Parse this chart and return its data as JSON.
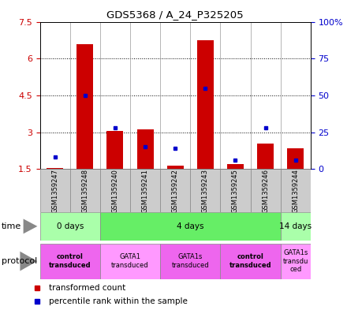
{
  "title": "GDS5368 / A_24_P325205",
  "samples": [
    "GSM1359247",
    "GSM1359248",
    "GSM1359240",
    "GSM1359241",
    "GSM1359242",
    "GSM1359243",
    "GSM1359245",
    "GSM1359246",
    "GSM1359244"
  ],
  "red_values": [
    1.55,
    6.6,
    3.05,
    3.1,
    1.65,
    6.75,
    1.7,
    2.55,
    2.35
  ],
  "blue_values_pct": [
    8,
    50,
    28,
    15,
    14,
    55,
    6,
    28,
    6
  ],
  "ylim_left": [
    1.5,
    7.5
  ],
  "yticks_left": [
    1.5,
    3.0,
    4.5,
    6.0,
    7.5
  ],
  "yticks_left_labels": [
    "1.5",
    "3",
    "4.5",
    "6",
    "7.5"
  ],
  "yticks_right": [
    0,
    25,
    50,
    75,
    100
  ],
  "yticks_right_labels": [
    "0",
    "25",
    "50",
    "75",
    "100%"
  ],
  "red_color": "#cc0000",
  "blue_color": "#0000cc",
  "bar_width": 0.55,
  "time_groups": [
    {
      "label": "0 days",
      "start": 0,
      "end": 2,
      "color": "#aaffaa"
    },
    {
      "label": "4 days",
      "start": 2,
      "end": 8,
      "color": "#66ee66"
    },
    {
      "label": "14 days",
      "start": 8,
      "end": 9,
      "color": "#aaffaa"
    }
  ],
  "protocol_groups": [
    {
      "label": "control\ntransduced",
      "start": 0,
      "end": 2,
      "color": "#ee66ee",
      "bold": true
    },
    {
      "label": "GATA1\ntransduced",
      "start": 2,
      "end": 4,
      "color": "#ff99ff",
      "bold": false
    },
    {
      "label": "GATA1s\ntransduced",
      "start": 4,
      "end": 6,
      "color": "#ee66ee",
      "bold": false
    },
    {
      "label": "control\ntransduced",
      "start": 6,
      "end": 8,
      "color": "#ee66ee",
      "bold": true
    },
    {
      "label": "GATA1s\ntransdu\nced",
      "start": 8,
      "end": 9,
      "color": "#ff99ff",
      "bold": false
    }
  ],
  "sample_bg_color": "#cccccc",
  "legend_red_label": "transformed count",
  "legend_blue_label": "percentile rank within the sample",
  "fig_width": 4.4,
  "fig_height": 3.93,
  "dpi": 100
}
